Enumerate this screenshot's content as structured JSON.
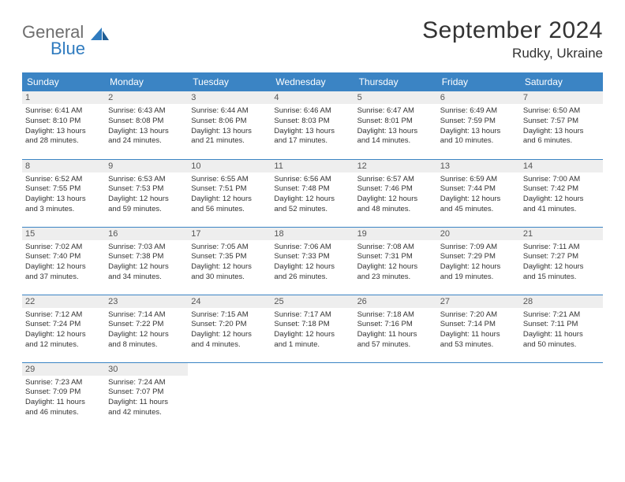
{
  "logo": {
    "general": "General",
    "blue": "Blue"
  },
  "title": "September 2024",
  "location": "Rudky, Ukraine",
  "colors": {
    "header_bg": "#3b84c4",
    "header_text": "#ffffff",
    "daynum_bg": "#eeeeee",
    "daynum_text": "#555555",
    "body_text": "#333333",
    "logo_gray": "#6e6e6e",
    "logo_blue": "#2f7bbf",
    "row_border": "#3b84c4",
    "background": "#ffffff"
  },
  "typography": {
    "title_fontsize": 30,
    "location_fontsize": 17,
    "dayhead_fontsize": 12,
    "daynum_fontsize": 11,
    "info_fontsize": 9.5,
    "font_family": "Arial"
  },
  "day_headers": [
    "Sunday",
    "Monday",
    "Tuesday",
    "Wednesday",
    "Thursday",
    "Friday",
    "Saturday"
  ],
  "weeks": [
    [
      {
        "n": "1",
        "sr": "Sunrise: 6:41 AM",
        "ss": "Sunset: 8:10 PM",
        "dl1": "Daylight: 13 hours",
        "dl2": "and 28 minutes."
      },
      {
        "n": "2",
        "sr": "Sunrise: 6:43 AM",
        "ss": "Sunset: 8:08 PM",
        "dl1": "Daylight: 13 hours",
        "dl2": "and 24 minutes."
      },
      {
        "n": "3",
        "sr": "Sunrise: 6:44 AM",
        "ss": "Sunset: 8:06 PM",
        "dl1": "Daylight: 13 hours",
        "dl2": "and 21 minutes."
      },
      {
        "n": "4",
        "sr": "Sunrise: 6:46 AM",
        "ss": "Sunset: 8:03 PM",
        "dl1": "Daylight: 13 hours",
        "dl2": "and 17 minutes."
      },
      {
        "n": "5",
        "sr": "Sunrise: 6:47 AM",
        "ss": "Sunset: 8:01 PM",
        "dl1": "Daylight: 13 hours",
        "dl2": "and 14 minutes."
      },
      {
        "n": "6",
        "sr": "Sunrise: 6:49 AM",
        "ss": "Sunset: 7:59 PM",
        "dl1": "Daylight: 13 hours",
        "dl2": "and 10 minutes."
      },
      {
        "n": "7",
        "sr": "Sunrise: 6:50 AM",
        "ss": "Sunset: 7:57 PM",
        "dl1": "Daylight: 13 hours",
        "dl2": "and 6 minutes."
      }
    ],
    [
      {
        "n": "8",
        "sr": "Sunrise: 6:52 AM",
        "ss": "Sunset: 7:55 PM",
        "dl1": "Daylight: 13 hours",
        "dl2": "and 3 minutes."
      },
      {
        "n": "9",
        "sr": "Sunrise: 6:53 AM",
        "ss": "Sunset: 7:53 PM",
        "dl1": "Daylight: 12 hours",
        "dl2": "and 59 minutes."
      },
      {
        "n": "10",
        "sr": "Sunrise: 6:55 AM",
        "ss": "Sunset: 7:51 PM",
        "dl1": "Daylight: 12 hours",
        "dl2": "and 56 minutes."
      },
      {
        "n": "11",
        "sr": "Sunrise: 6:56 AM",
        "ss": "Sunset: 7:48 PM",
        "dl1": "Daylight: 12 hours",
        "dl2": "and 52 minutes."
      },
      {
        "n": "12",
        "sr": "Sunrise: 6:57 AM",
        "ss": "Sunset: 7:46 PM",
        "dl1": "Daylight: 12 hours",
        "dl2": "and 48 minutes."
      },
      {
        "n": "13",
        "sr": "Sunrise: 6:59 AM",
        "ss": "Sunset: 7:44 PM",
        "dl1": "Daylight: 12 hours",
        "dl2": "and 45 minutes."
      },
      {
        "n": "14",
        "sr": "Sunrise: 7:00 AM",
        "ss": "Sunset: 7:42 PM",
        "dl1": "Daylight: 12 hours",
        "dl2": "and 41 minutes."
      }
    ],
    [
      {
        "n": "15",
        "sr": "Sunrise: 7:02 AM",
        "ss": "Sunset: 7:40 PM",
        "dl1": "Daylight: 12 hours",
        "dl2": "and 37 minutes."
      },
      {
        "n": "16",
        "sr": "Sunrise: 7:03 AM",
        "ss": "Sunset: 7:38 PM",
        "dl1": "Daylight: 12 hours",
        "dl2": "and 34 minutes."
      },
      {
        "n": "17",
        "sr": "Sunrise: 7:05 AM",
        "ss": "Sunset: 7:35 PM",
        "dl1": "Daylight: 12 hours",
        "dl2": "and 30 minutes."
      },
      {
        "n": "18",
        "sr": "Sunrise: 7:06 AM",
        "ss": "Sunset: 7:33 PM",
        "dl1": "Daylight: 12 hours",
        "dl2": "and 26 minutes."
      },
      {
        "n": "19",
        "sr": "Sunrise: 7:08 AM",
        "ss": "Sunset: 7:31 PM",
        "dl1": "Daylight: 12 hours",
        "dl2": "and 23 minutes."
      },
      {
        "n": "20",
        "sr": "Sunrise: 7:09 AM",
        "ss": "Sunset: 7:29 PM",
        "dl1": "Daylight: 12 hours",
        "dl2": "and 19 minutes."
      },
      {
        "n": "21",
        "sr": "Sunrise: 7:11 AM",
        "ss": "Sunset: 7:27 PM",
        "dl1": "Daylight: 12 hours",
        "dl2": "and 15 minutes."
      }
    ],
    [
      {
        "n": "22",
        "sr": "Sunrise: 7:12 AM",
        "ss": "Sunset: 7:24 PM",
        "dl1": "Daylight: 12 hours",
        "dl2": "and 12 minutes."
      },
      {
        "n": "23",
        "sr": "Sunrise: 7:14 AM",
        "ss": "Sunset: 7:22 PM",
        "dl1": "Daylight: 12 hours",
        "dl2": "and 8 minutes."
      },
      {
        "n": "24",
        "sr": "Sunrise: 7:15 AM",
        "ss": "Sunset: 7:20 PM",
        "dl1": "Daylight: 12 hours",
        "dl2": "and 4 minutes."
      },
      {
        "n": "25",
        "sr": "Sunrise: 7:17 AM",
        "ss": "Sunset: 7:18 PM",
        "dl1": "Daylight: 12 hours",
        "dl2": "and 1 minute."
      },
      {
        "n": "26",
        "sr": "Sunrise: 7:18 AM",
        "ss": "Sunset: 7:16 PM",
        "dl1": "Daylight: 11 hours",
        "dl2": "and 57 minutes."
      },
      {
        "n": "27",
        "sr": "Sunrise: 7:20 AM",
        "ss": "Sunset: 7:14 PM",
        "dl1": "Daylight: 11 hours",
        "dl2": "and 53 minutes."
      },
      {
        "n": "28",
        "sr": "Sunrise: 7:21 AM",
        "ss": "Sunset: 7:11 PM",
        "dl1": "Daylight: 11 hours",
        "dl2": "and 50 minutes."
      }
    ],
    [
      {
        "n": "29",
        "sr": "Sunrise: 7:23 AM",
        "ss": "Sunset: 7:09 PM",
        "dl1": "Daylight: 11 hours",
        "dl2": "and 46 minutes."
      },
      {
        "n": "30",
        "sr": "Sunrise: 7:24 AM",
        "ss": "Sunset: 7:07 PM",
        "dl1": "Daylight: 11 hours",
        "dl2": "and 42 minutes."
      },
      {
        "empty": true
      },
      {
        "empty": true
      },
      {
        "empty": true
      },
      {
        "empty": true
      },
      {
        "empty": true
      }
    ]
  ]
}
